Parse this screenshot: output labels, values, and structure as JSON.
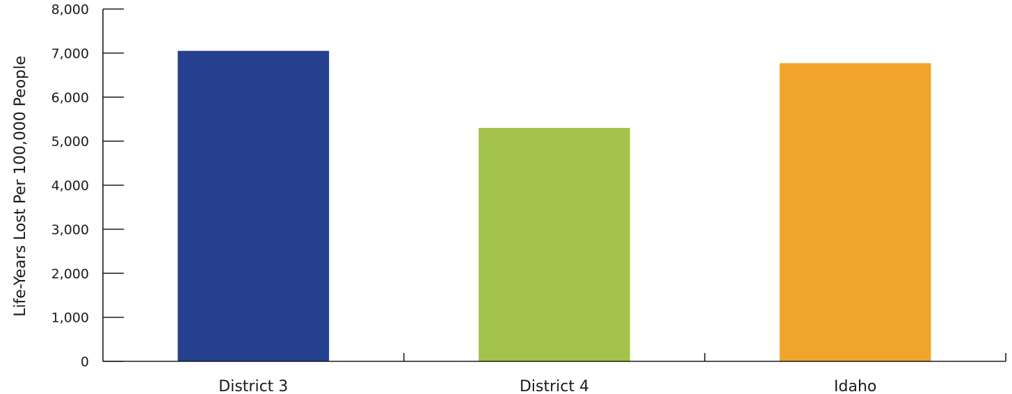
{
  "chart_data": {
    "type": "bar",
    "title": "",
    "xlabel": "",
    "ylabel": "Life-Years Lost Per 100,000 People",
    "categories": [
      "District 3",
      "District 4",
      "Idaho"
    ],
    "values": [
      7050,
      5300,
      6770
    ],
    "colors": [
      "#25408F",
      "#A3C34A",
      "#F0A52A"
    ],
    "ylim": [
      0,
      8000
    ],
    "yticks": [
      0,
      1000,
      2000,
      3000,
      4000,
      5000,
      6000,
      7000,
      8000
    ],
    "ytick_labels": [
      "0",
      "1,000",
      "2,000",
      "3,000",
      "4,000",
      "5,000",
      "6,000",
      "7,000",
      "8,000"
    ],
    "grid": false,
    "legend": "none"
  }
}
